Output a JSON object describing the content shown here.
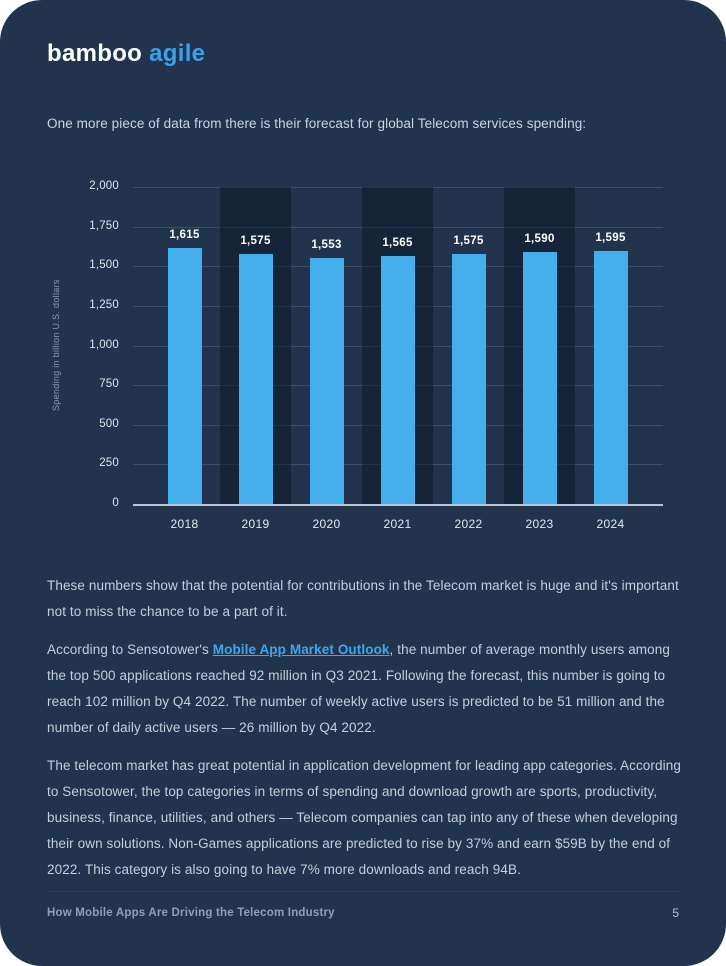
{
  "logo": {
    "primary": "bamboo",
    "accent": "agile"
  },
  "intro_text": "One more piece of data from there is their forecast for global Telecom services spending:",
  "chart_data": {
    "type": "bar",
    "title": "",
    "categories": [
      "2018",
      "2019",
      "2020",
      "2021",
      "2022",
      "2023",
      "2024"
    ],
    "values": [
      1615,
      1575,
      1553,
      1565,
      1575,
      1590,
      1595
    ],
    "value_labels": [
      "1,615",
      "1,575",
      "1,553",
      "1,565",
      "1,575",
      "1,590",
      "1,595"
    ],
    "xlabel": "",
    "ylabel": "Spending in billion U.S. dollars",
    "ylim": [
      0,
      2000
    ],
    "ytick_step": 250,
    "yticks": [
      "0",
      "250",
      "500",
      "750",
      "1,000",
      "1,250",
      "1,500",
      "1,750",
      "2,000"
    ],
    "grid": "horizontal",
    "legend": "none",
    "shaded_categories": [
      "2019",
      "2021",
      "2023"
    ],
    "bar_color": "#45aeec",
    "band_color": "rgba(9,18,33,0.48)"
  },
  "paragraphs": {
    "p1": "These numbers show that the potential for contributions in the Telecom market is huge and it's important not to miss the chance to be a part of it.",
    "p2_before": "According to Sensotower's ",
    "p2_link": "Mobile App Market Outlook",
    "p2_after": ", the number of average monthly users among the top 500 applications reached 92 million in Q3 2021. Following the forecast, this number is going to reach 102 million by Q4 2022. The number of weekly active users is predicted to be 51 million and the number of daily active users — 26 million by Q4 2022.",
    "p3": "The telecom market has great potential in application development for leading app categories. According to Sensotower, the top categories in terms of spending and download growth are sports, productivity, business, finance, utilities, and others — Telecom companies can tap into any of these when developing their own solutions. Non-Games applications are predicted to rise by 37% and earn $59B by the end of 2022. This category is also going to have 7% more downloads and reach 94B."
  },
  "footer": {
    "title": "How Mobile Apps Are Driving the Telecom Industry",
    "page_number": "5"
  },
  "colors": {
    "page_bg": "#22344d",
    "accent_blue": "#3aa2e8",
    "bar_blue": "#45aeec",
    "body_text": "#c5cedb",
    "baseline": "#b9c5d3"
  }
}
